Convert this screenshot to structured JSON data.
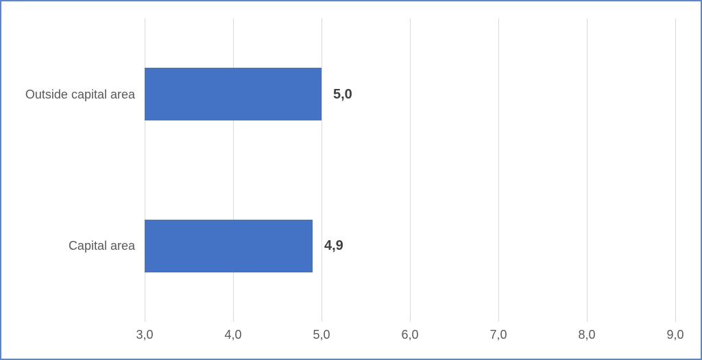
{
  "chart": {
    "title": "",
    "border_color": "#5b87c9",
    "background_color": "#ffffff"
  },
  "chart_data": {
    "type": "bar",
    "orientation": "horizontal",
    "title": "",
    "xlabel": "",
    "ylabel": "",
    "categories": [
      "Outside capital area",
      "Capital area"
    ],
    "values": [
      5.0,
      4.9
    ],
    "data_labels": [
      "5,0",
      "4,9"
    ],
    "xlim": [
      3.0,
      9.0
    ],
    "x_ticks": [
      3.0,
      4.0,
      5.0,
      6.0,
      7.0,
      8.0,
      9.0
    ],
    "x_tick_labels": [
      "3,0",
      "4,0",
      "5,0",
      "6,0",
      "7,0",
      "8,0",
      "9,0"
    ],
    "grid": "vertical",
    "legend": "none",
    "bar_color": "#4472c4",
    "gridline_color": "#d9d9d9",
    "tick_label_color": "#595959",
    "category_label_color": "#595959",
    "data_label_color": "#3f3f3f"
  }
}
